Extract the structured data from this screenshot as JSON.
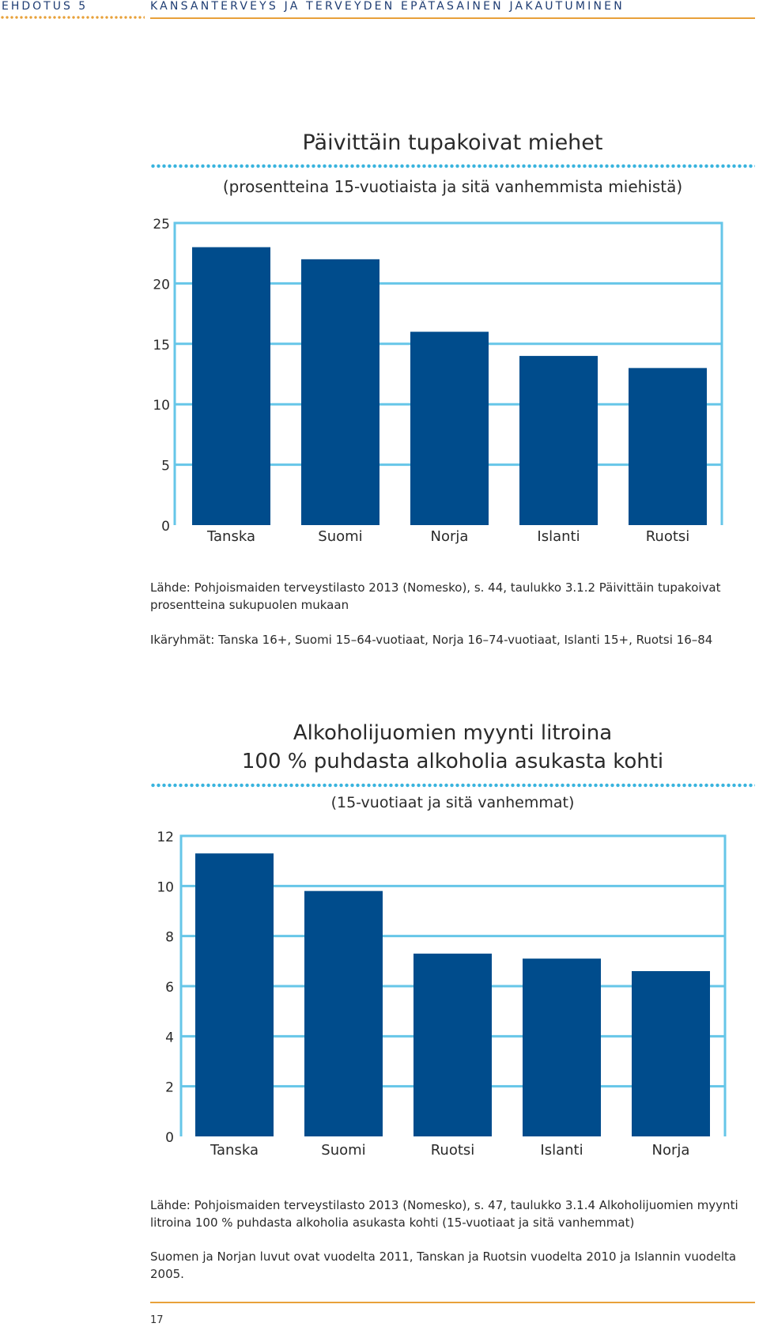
{
  "header": {
    "section": "EHDOTUS 5",
    "title": "KANSANTERVEYS JA TERVEYDEN EPÄTASAINEN JAKAUTUMINEN"
  },
  "chart_data": [
    {
      "type": "bar",
      "title": "Päivittäin tupakoivat miehet",
      "subtitle": "(prosentteina 15-vuotiaista ja sitä vanhemmista miehistä)",
      "categories": [
        "Tanska",
        "Suomi",
        "Norja",
        "Islanti",
        "Ruotsi"
      ],
      "values": [
        23,
        22,
        16,
        14,
        13
      ],
      "ylim": [
        0,
        25
      ],
      "yticks": [
        0,
        5,
        10,
        15,
        20,
        25
      ],
      "grid": true,
      "bar_color": "#004c8c",
      "grid_color": "#66c6e8"
    },
    {
      "type": "bar",
      "title": "Alkoholijuomien myynti litroina",
      "title_line2": "100 % puhdasta alkoholia asukasta kohti",
      "subtitle": "(15-vuotiaat ja sitä vanhemmat)",
      "categories": [
        "Tanska",
        "Suomi",
        "Ruotsi",
        "Islanti",
        "Norja"
      ],
      "values": [
        11.3,
        9.8,
        7.3,
        7.1,
        6.6
      ],
      "ylim": [
        0,
        12
      ],
      "yticks": [
        0,
        2,
        4,
        6,
        8,
        10,
        12
      ],
      "grid": true,
      "bar_color": "#004c8c",
      "grid_color": "#66c6e8"
    }
  ],
  "notes": {
    "chart1_source": "Lähde: Pohjoismaiden terveystilasto 2013 (Nomesko), s. 44, taulukko 3.1.2 Päivittäin tupakoivat prosentteina sukupuolen mukaan",
    "chart1_ages": "Ikäryhmät: Tanska 16+, Suomi 15–64-vuotiaat, Norja 16–74-vuotiaat, Islanti 15+, Ruotsi 16–84",
    "chart2_source": "Lähde: Pohjoismaiden terveystilasto 2013 (Nomesko), s. 47, taulukko 3.1.4 Alkoholijuomien myynti litroina 100 % puhdasta alkoholia asukasta kohti (15-vuotiaat ja sitä vanhemmat)",
    "chart2_years": "Suomen ja Norjan luvut ovat vuodelta 2011, Tanskan ja Ruotsin vuodelta 2010 ja Islannin vuodelta 2005."
  },
  "page_number": "17"
}
